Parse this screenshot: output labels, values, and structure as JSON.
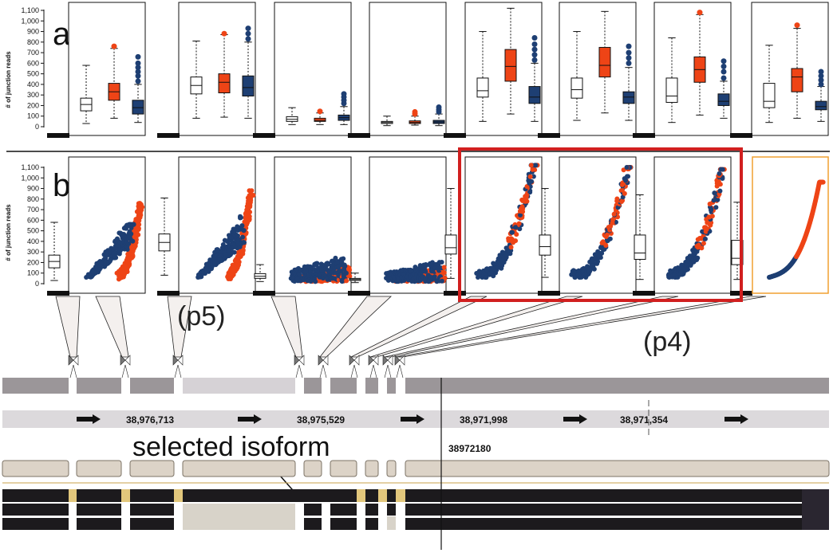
{
  "panel_a": {
    "label": "a)"
  },
  "panel_b": {
    "label": "b)"
  },
  "y_axis": {
    "label": "# of junction reads",
    "ticks": [
      "0",
      "100",
      "200",
      "300",
      "400",
      "500",
      "600",
      "700",
      "800",
      "900",
      "1,000",
      "1,100"
    ],
    "range": [
      0,
      1100
    ]
  },
  "callouts": {
    "p5": "(p5)",
    "p4": "(p4)"
  },
  "selected_isoform_label": "selected isoform",
  "coordinates": [
    "38,976,713",
    "38,975,529",
    "38,971,998",
    "38,971,354"
  ],
  "cursor_position": "38972180",
  "colors": {
    "group_white": "#ffffff",
    "group_red": "#ee4416",
    "group_blue": "#1e3f73",
    "highlight_red": "#d11f1f",
    "highlight_orange": "#f0a030",
    "exon_gray": "#9b9699",
    "isoform_dark": "#1c1a1d",
    "junction_tan": "#e2c77c"
  },
  "chart_data": {
    "type": "box",
    "ylabel": "# of junction reads",
    "ylim": [
      0,
      1100
    ],
    "series_colors": [
      "white",
      "red",
      "blue"
    ],
    "junctions": [
      {
        "white": {
          "whislo": 30,
          "q1": 150,
          "med": 210,
          "q3": 270,
          "whishi": 580
        },
        "red": {
          "whislo": 80,
          "q1": 250,
          "med": 330,
          "q3": 410,
          "whishi": 740,
          "fliers": [
            760
          ]
        },
        "blue": {
          "whislo": 40,
          "q1": 120,
          "med": 180,
          "q3": 250,
          "whishi": 400,
          "fliers": [
            430,
            480,
            520,
            560,
            600,
            660
          ]
        }
      },
      {
        "white": {
          "whislo": 80,
          "q1": 310,
          "med": 390,
          "q3": 470,
          "whishi": 810
        },
        "red": {
          "whislo": 90,
          "q1": 320,
          "med": 420,
          "q3": 500,
          "whishi": 870,
          "fliers": [
            880
          ]
        },
        "blue": {
          "whislo": 80,
          "q1": 290,
          "med": 370,
          "q3": 480,
          "whishi": 800,
          "fliers": [
            830,
            880,
            930
          ]
        }
      },
      {
        "white": {
          "whislo": 20,
          "q1": 50,
          "med": 70,
          "q3": 95,
          "whishi": 180
        },
        "red": {
          "whislo": 20,
          "q1": 50,
          "med": 60,
          "q3": 80,
          "whishi": 130,
          "fliers": [
            145
          ]
        },
        "blue": {
          "whislo": 20,
          "q1": 60,
          "med": 85,
          "q3": 110,
          "whishi": 190,
          "fliers": [
            220,
            250,
            280,
            310
          ]
        }
      },
      {
        "white": {
          "whislo": 10,
          "q1": 30,
          "med": 40,
          "q3": 50,
          "whishi": 100
        },
        "red": {
          "whislo": 15,
          "q1": 30,
          "med": 40,
          "q3": 55,
          "whishi": 100,
          "fliers": [
            120,
            140
          ]
        },
        "blue": {
          "whislo": 10,
          "q1": 30,
          "med": 45,
          "q3": 60,
          "whishi": 120,
          "fliers": [
            140,
            160,
            185
          ]
        }
      },
      {
        "white": {
          "whislo": 50,
          "q1": 280,
          "med": 340,
          "q3": 460,
          "whishi": 900
        },
        "red": {
          "whislo": 120,
          "q1": 430,
          "med": 570,
          "q3": 730,
          "whishi": 1120
        },
        "blue": {
          "whislo": 50,
          "q1": 220,
          "med": 280,
          "q3": 380,
          "whishi": 600,
          "fliers": [
            630,
            680,
            730,
            780,
            840
          ]
        }
      },
      {
        "white": {
          "whislo": 60,
          "q1": 270,
          "med": 350,
          "q3": 460,
          "whishi": 900
        },
        "red": {
          "whislo": 130,
          "q1": 470,
          "med": 580,
          "q3": 750,
          "whishi": 1090
        },
        "blue": {
          "whislo": 60,
          "q1": 220,
          "med": 280,
          "q3": 330,
          "whishi": 560,
          "fliers": [
            600,
            650,
            700,
            760
          ]
        }
      },
      {
        "white": {
          "whislo": 40,
          "q1": 230,
          "med": 290,
          "q3": 460,
          "whishi": 840
        },
        "red": {
          "whislo": 110,
          "q1": 420,
          "med": 540,
          "q3": 660,
          "whishi": 1060,
          "fliers": [
            1080
          ]
        },
        "blue": {
          "whislo": 80,
          "q1": 200,
          "med": 240,
          "q3": 310,
          "whishi": 430,
          "fliers": [
            460,
            520,
            570,
            620
          ]
        }
      },
      {
        "white": {
          "whislo": 40,
          "q1": 180,
          "med": 240,
          "q3": 410,
          "whishi": 770
        },
        "red": {
          "whislo": 80,
          "q1": 330,
          "med": 470,
          "q3": 550,
          "whishi": 930,
          "fliers": [
            960
          ]
        },
        "blue": {
          "whislo": 50,
          "q1": 160,
          "med": 190,
          "q3": 240,
          "whishi": 380,
          "fliers": [
            400,
            440,
            480,
            520
          ]
        }
      }
    ]
  }
}
